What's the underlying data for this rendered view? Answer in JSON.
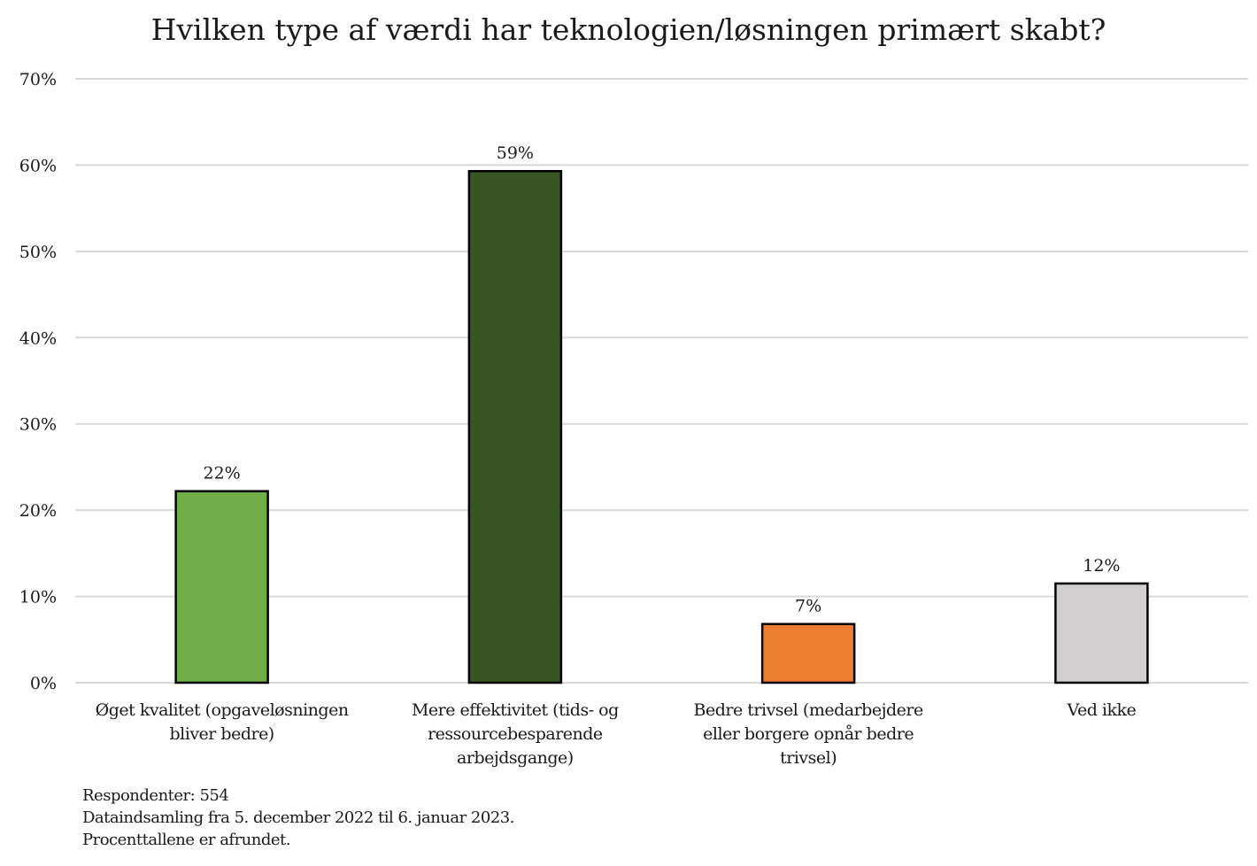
{
  "chart_data": {
    "type": "bar",
    "title": "Hvilken type af værdi har teknologien/løsningen primært skabt?",
    "xlabel": "",
    "ylabel": "",
    "ylim": [
      0,
      70
    ],
    "yticks": [
      0,
      10,
      20,
      30,
      40,
      50,
      60,
      70
    ],
    "ytick_labels": [
      "0%",
      "10%",
      "20%",
      "30%",
      "40%",
      "50%",
      "60%",
      "70%"
    ],
    "grid": true,
    "legend": "none",
    "categories": [
      [
        "Øget kvalitet (opgaveløsningen",
        "bliver bedre)"
      ],
      [
        "Mere effektivitet (tids- og",
        "ressourcebesparende",
        "arbejdsgange)"
      ],
      [
        "Bedre trivsel (medarbejdere",
        "eller borgere opnår bedre",
        "trivsel)"
      ],
      [
        "Ved ikke"
      ]
    ],
    "values": [
      22.2,
      59.3,
      6.8,
      11.5
    ],
    "data_labels": [
      "22%",
      "59%",
      "7%",
      "12%"
    ],
    "colors": [
      "#70ad47",
      "#375623",
      "#ed7d31",
      "#d0cece"
    ]
  },
  "notes": [
    "Respondenter: 554",
    "Dataindsamling fra 5. december 2022 til 6. januar 2023.",
    "Procenttallene er afrundet."
  ]
}
